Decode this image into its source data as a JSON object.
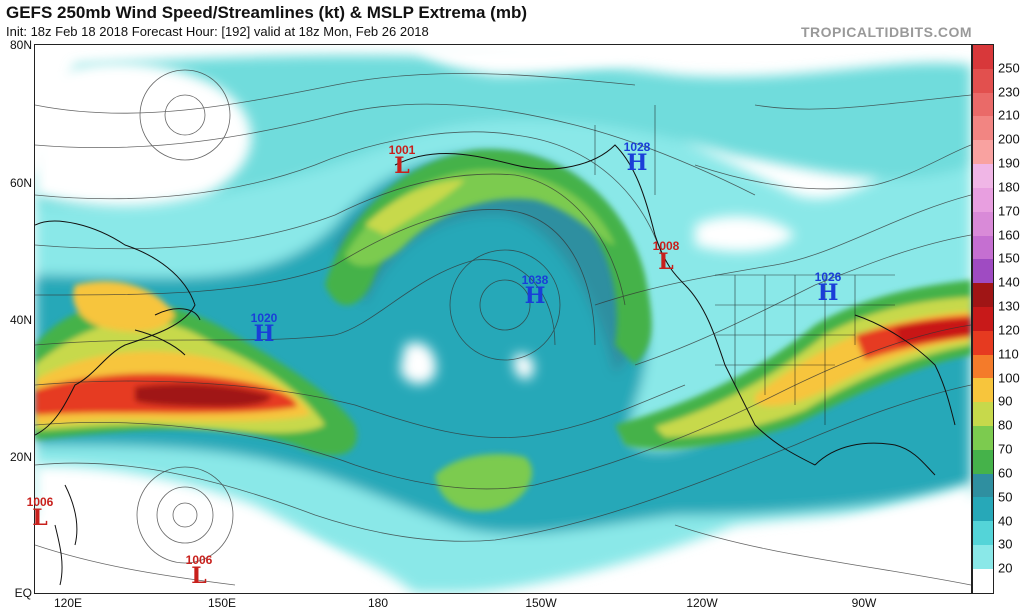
{
  "header": {
    "title": "GEFS 250mb Wind Speed/Streamlines (kt) & MSLP Extrema (mb)",
    "subtitle": "Init: 18z Feb 18 2018   Forecast Hour: [192]   valid at 18z Mon, Feb 26 2018",
    "brand": "TROPICALTIDBITS.COM"
  },
  "axes": {
    "lat_labels": [
      "80N",
      "60N",
      "40N",
      "20N",
      "EQ"
    ],
    "lon_labels": [
      "120E",
      "150E",
      "180",
      "150W",
      "120W",
      "90W"
    ]
  },
  "colorbar": {
    "labels": [
      "250",
      "230",
      "210",
      "200",
      "190",
      "180",
      "170",
      "160",
      "150",
      "140",
      "130",
      "120",
      "110",
      "100",
      "90",
      "80",
      "70",
      "60",
      "50",
      "40",
      "30",
      "20"
    ],
    "colors": [
      "#d8383a",
      "#e2504e",
      "#ea6a68",
      "#f28582",
      "#f9a2a0",
      "#f0b6e6",
      "#e89fe0",
      "#d98ad8",
      "#c56fd1",
      "#9f4bc2",
      "#a01515",
      "#c81919",
      "#e63a20",
      "#f47b2a",
      "#f7c53c",
      "#c7d94b",
      "#7ccb4f",
      "#45b24a",
      "#2f8fa0",
      "#27a8b8",
      "#54d4d8",
      "#8ae8e8"
    ],
    "accent_low": "#ffffff"
  },
  "systems": [
    {
      "type": "L",
      "value": "1001"
    },
    {
      "type": "H",
      "value": "1028"
    },
    {
      "type": "L",
      "value": "1008"
    },
    {
      "type": "H",
      "value": "1038"
    },
    {
      "type": "H",
      "value": "1026"
    },
    {
      "type": "H",
      "value": "1020"
    },
    {
      "type": "L",
      "value": "1006"
    },
    {
      "type": "L",
      "value": "1006"
    }
  ]
}
